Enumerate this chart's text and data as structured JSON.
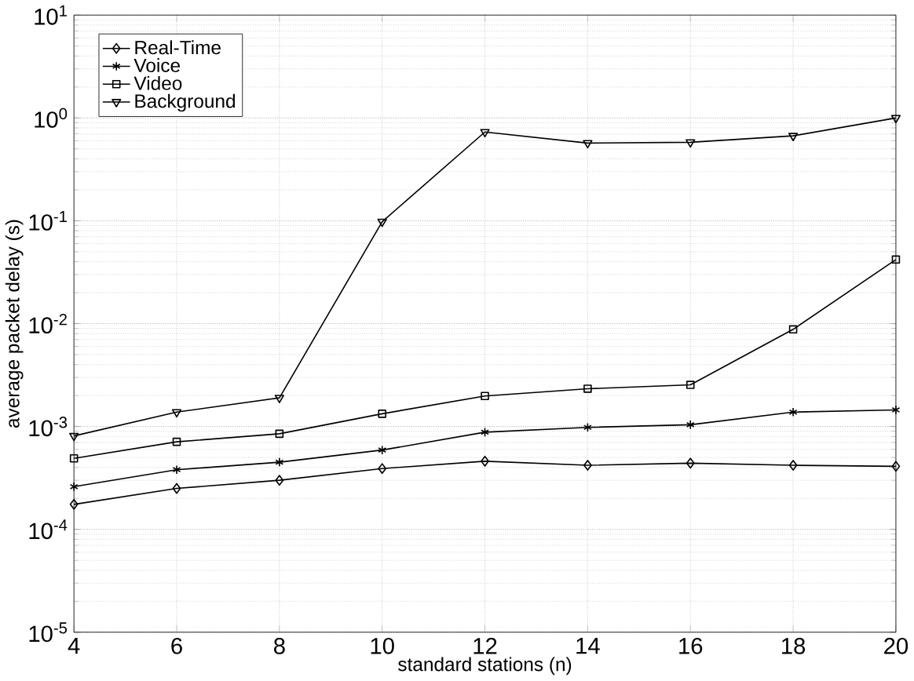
{
  "chart_data": {
    "type": "line",
    "xlabel": "standard stations (n)",
    "ylabel": "average packet delay (s)",
    "x": [
      4,
      6,
      8,
      10,
      12,
      14,
      16,
      18,
      20
    ],
    "series": [
      {
        "name": "Real-Time",
        "color": "#000000",
        "marker": "diamond",
        "values": [
          0.000175,
          0.00025,
          0.0003,
          0.00039,
          0.00046,
          0.00042,
          0.00044,
          0.00042,
          0.00041
        ]
      },
      {
        "name": "Voice",
        "color": "#000000",
        "marker": "cross",
        "values": [
          0.00026,
          0.00038,
          0.00045,
          0.00059,
          0.00088,
          0.00098,
          0.00104,
          0.00138,
          0.00145
        ]
      },
      {
        "name": "Video",
        "color": "#000000",
        "marker": "square",
        "values": [
          0.00049,
          0.00071,
          0.00085,
          0.00133,
          0.00198,
          0.00233,
          0.00254,
          0.0088,
          0.042
        ]
      },
      {
        "name": "Background",
        "color": "#000000",
        "marker": "triangle",
        "values": [
          0.00081,
          0.00138,
          0.0019,
          0.098,
          0.73,
          0.57,
          0.58,
          0.67,
          1.0
        ]
      }
    ],
    "log": "y",
    "xlim": [
      4,
      20
    ],
    "ylim": [
      1e-05,
      10
    ],
    "xticks": [
      4,
      6,
      8,
      10,
      12,
      14,
      16,
      18,
      20
    ],
    "yticks": [
      {
        "value": 1e-05,
        "label": "10$^{-5}$"
      },
      {
        "value": 0.0001,
        "label": "10$^{-4}$"
      },
      {
        "value": 0.001,
        "label": "10$^{-3}$"
      },
      {
        "value": 0.01,
        "label": "10$^{-2}$"
      },
      {
        "value": 0.1,
        "label": "10$^{-1}$"
      },
      {
        "value": 1,
        "label": "10$^{0}$"
      },
      {
        "value": 10,
        "label": "10$^{1}$"
      }
    ],
    "grid": true,
    "legend": "top left",
    "line_style": "solid"
  }
}
